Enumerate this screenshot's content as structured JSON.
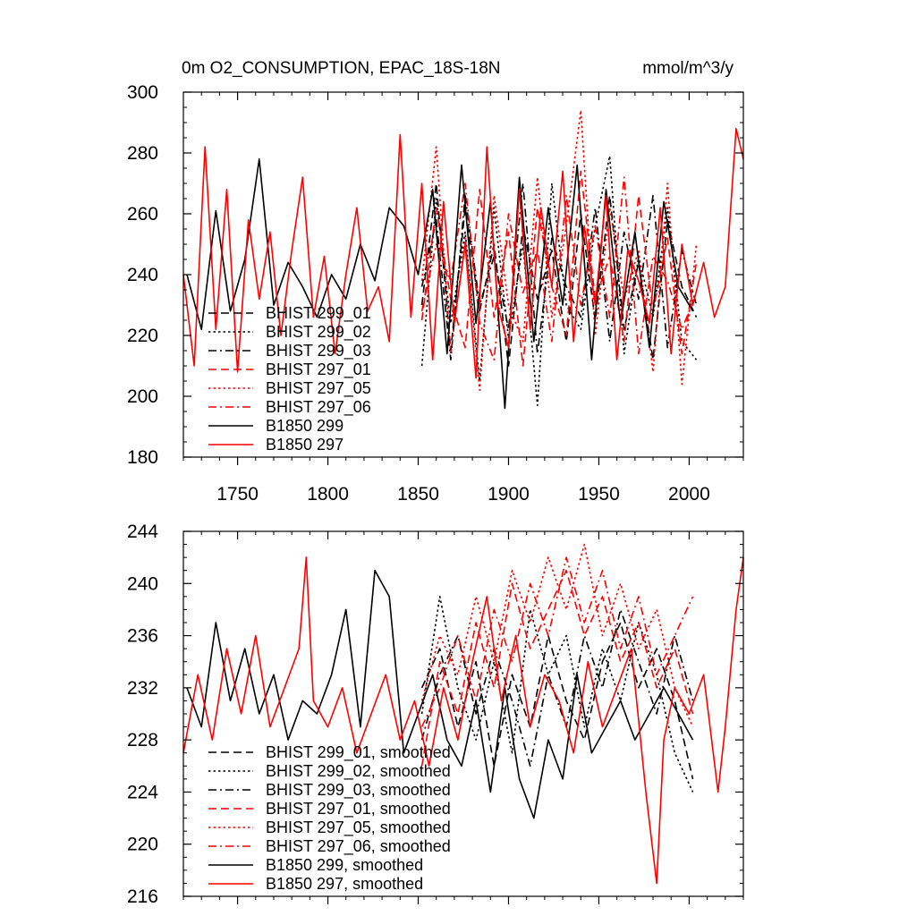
{
  "figure": {
    "title_left": "0m O2_CONSUMPTION, EPAC_18S-18N",
    "title_right": "mmol/m^3/y"
  },
  "colors": {
    "black": "#000000",
    "red": "#ff0000"
  },
  "chart_data": [
    {
      "type": "line",
      "name": "raw",
      "xlim": [
        1720,
        2030
      ],
      "ylim": [
        180,
        300
      ],
      "x_ticks": [
        1750,
        1800,
        1850,
        1900,
        1950,
        2000
      ],
      "x_tick_labels": [
        "1750",
        "1800",
        "1850",
        "1900",
        "1950",
        "2000"
      ],
      "y_ticks": [
        180,
        200,
        220,
        240,
        260,
        280,
        300
      ],
      "y_tick_labels": [
        "180",
        "200",
        "220",
        "240",
        "260",
        "280",
        "300"
      ],
      "legend": {
        "position": "bottom-left"
      },
      "series": [
        {
          "name": "BHIST 299_01",
          "color": "#000000",
          "dash": "dash",
          "x": [
            1852,
            1860,
            1868,
            1876,
            1884,
            1892,
            1900,
            1908,
            1916,
            1924,
            1932,
            1940,
            1948,
            1956,
            1964,
            1972,
            1980,
            1988,
            1996,
            2004
          ],
          "y": [
            230,
            270,
            215,
            262,
            228,
            250,
            210,
            256,
            232,
            248,
            218,
            260,
            225,
            266,
            222,
            244,
            212,
            258,
            236,
            226
          ]
        },
        {
          "name": "BHIST 299_02",
          "color": "#000000",
          "dash": "dot",
          "x": [
            1852,
            1860,
            1868,
            1876,
            1884,
            1892,
            1900,
            1908,
            1916,
            1924,
            1932,
            1940,
            1948,
            1956,
            1964,
            1972,
            1980,
            1988,
            1996,
            2004
          ],
          "y": [
            210,
            265,
            224,
            254,
            205,
            262,
            219,
            250,
            197,
            270,
            230,
            222,
            256,
            279,
            214,
            246,
            226,
            262,
            218,
            212
          ]
        },
        {
          "name": "BHIST 299_03",
          "color": "#000000",
          "dash": "dashdot",
          "x": [
            1852,
            1860,
            1868,
            1876,
            1884,
            1892,
            1900,
            1908,
            1916,
            1924,
            1932,
            1940,
            1948,
            1956,
            1964,
            1972,
            1980,
            1988,
            1996,
            2004
          ],
          "y": [
            236,
            258,
            212,
            266,
            230,
            246,
            222,
            270,
            214,
            252,
            236,
            226,
            262,
            218,
            254,
            232,
            266,
            216,
            248,
            230
          ]
        },
        {
          "name": "BHIST 297_01",
          "color": "#ff0000",
          "dash": "dash",
          "x": [
            1852,
            1860,
            1868,
            1876,
            1884,
            1892,
            1900,
            1908,
            1916,
            1924,
            1932,
            1940,
            1948,
            1956,
            1964,
            1972,
            1980,
            1988,
            1996,
            2004
          ],
          "y": [
            225,
            262,
            232,
            216,
            268,
            226,
            254,
            210,
            262,
            236,
            220,
            274,
            232,
            246,
            218,
            266,
            228,
            252,
            214,
            244
          ]
        },
        {
          "name": "BHIST 297_05",
          "color": "#ff0000",
          "dash": "dot",
          "x": [
            1852,
            1860,
            1868,
            1876,
            1884,
            1892,
            1900,
            1908,
            1916,
            1924,
            1932,
            1940,
            1948,
            1956,
            1964,
            1972,
            1980,
            1988,
            1996,
            2004
          ],
          "y": [
            238,
            282,
            214,
            252,
            202,
            266,
            230,
            218,
            272,
            226,
            256,
            294,
            220,
            262,
            232,
            248,
            208,
            270,
            204,
            250
          ]
        },
        {
          "name": "BHIST 297_06",
          "color": "#ff0000",
          "dash": "dashdot",
          "x": [
            1852,
            1860,
            1868,
            1876,
            1884,
            1892,
            1900,
            1908,
            1916,
            1924,
            1932,
            1940,
            1948,
            1956,
            1964,
            1972,
            1980,
            1988,
            1996,
            2004
          ],
          "y": [
            228,
            250,
            238,
            270,
            224,
            212,
            260,
            234,
            248,
            218,
            266,
            230,
            256,
            226,
            272,
            214,
            246,
            238,
            222,
            234
          ]
        },
        {
          "name": "B1850 299",
          "color": "#000000",
          "dash": "solid",
          "x": [
            1722,
            1730,
            1738,
            1746,
            1754,
            1762,
            1770,
            1778,
            1786,
            1794,
            1802,
            1810,
            1818,
            1826,
            1834,
            1842,
            1850,
            1858,
            1866,
            1874,
            1882,
            1890,
            1898,
            1906,
            1914,
            1922,
            1930,
            1938,
            1946,
            1954,
            1962,
            1970,
            1978,
            1986,
            1994,
            2002
          ],
          "y": [
            240,
            222,
            261,
            228,
            245,
            278,
            230,
            244,
            236,
            226,
            240,
            232,
            250,
            238,
            262,
            256,
            240,
            268,
            214,
            276,
            224,
            264,
            196,
            272,
            218,
            262,
            230,
            276,
            212,
            268,
            224,
            254,
            216,
            264,
            236,
            228
          ]
        },
        {
          "name": "B1850 297",
          "color": "#ff0000",
          "dash": "solid",
          "x": [
            1720,
            1726,
            1732,
            1738,
            1744,
            1750,
            1756,
            1762,
            1768,
            1774,
            1780,
            1786,
            1792,
            1798,
            1804,
            1810,
            1816,
            1822,
            1828,
            1834,
            1840,
            1846,
            1852,
            1858,
            1864,
            1870,
            1876,
            1882,
            1888,
            1894,
            1900,
            1906,
            1912,
            1918,
            1924,
            1930,
            1936,
            1942,
            1948,
            1954,
            1960,
            1966,
            1972,
            1978,
            1984,
            1990,
            1996,
            2002,
            2008,
            2014,
            2020,
            2026,
            2030
          ],
          "y": [
            240,
            210,
            282,
            222,
            268,
            208,
            258,
            232,
            254,
            220,
            248,
            272,
            226,
            246,
            214,
            240,
            262,
            228,
            236,
            218,
            286,
            226,
            270,
            212,
            264,
            224,
            250,
            206,
            282,
            230,
            216,
            268,
            222,
            262,
            236,
            274,
            218,
            256,
            230,
            266,
            212,
            248,
            238,
            224,
            262,
            214,
            250,
            230,
            244,
            226,
            236,
            288,
            278
          ]
        }
      ]
    },
    {
      "type": "line",
      "name": "smoothed",
      "xlim": [
        1720,
        2030
      ],
      "ylim": [
        216,
        244
      ],
      "x_ticks": [
        1750,
        1800,
        1850,
        1900,
        1950,
        2000
      ],
      "x_tick_labels": [],
      "y_ticks": [
        216,
        220,
        224,
        228,
        232,
        236,
        240,
        244
      ],
      "y_tick_labels": [
        "216",
        "220",
        "224",
        "228",
        "232",
        "236",
        "240",
        "244"
      ],
      "legend": {
        "position": "bottom-left"
      },
      "series": [
        {
          "name": "BHIST 299_01, smoothed",
          "color": "#000000",
          "dash": "dash",
          "x": [
            1852,
            1862,
            1872,
            1882,
            1892,
            1902,
            1912,
            1922,
            1932,
            1942,
            1952,
            1962,
            1972,
            1982,
            1992,
            2002
          ],
          "y": [
            232,
            235,
            229,
            234,
            226,
            233,
            229,
            236,
            231,
            228,
            234,
            237,
            232,
            235,
            231,
            225
          ]
        },
        {
          "name": "BHIST 299_02, smoothed",
          "color": "#000000",
          "dash": "dot",
          "x": [
            1852,
            1862,
            1872,
            1882,
            1892,
            1902,
            1912,
            1922,
            1932,
            1942,
            1952,
            1962,
            1972,
            1982,
            1992,
            2002
          ],
          "y": [
            230,
            239,
            232,
            228,
            234,
            227,
            238,
            233,
            236,
            229,
            235,
            231,
            237,
            233,
            227,
            224
          ]
        },
        {
          "name": "BHIST 299_03, smoothed",
          "color": "#000000",
          "dash": "dashdot",
          "x": [
            1852,
            1862,
            1872,
            1882,
            1892,
            1902,
            1912,
            1922,
            1932,
            1942,
            1952,
            1962,
            1972,
            1982,
            1992,
            2002
          ],
          "y": [
            228,
            233,
            236,
            230,
            235,
            231,
            226,
            233,
            229,
            236,
            232,
            238,
            234,
            230,
            236,
            231
          ]
        },
        {
          "name": "BHIST 297_01, smoothed",
          "color": "#ff0000",
          "dash": "dash",
          "x": [
            1852,
            1862,
            1872,
            1882,
            1892,
            1902,
            1912,
            1922,
            1932,
            1942,
            1952,
            1962,
            1972,
            1982,
            1992,
            2002
          ],
          "y": [
            226,
            234,
            230,
            237,
            232,
            240,
            235,
            238,
            241,
            236,
            239,
            234,
            237,
            232,
            235,
            230
          ]
        },
        {
          "name": "BHIST 297_05, smoothed",
          "color": "#ff0000",
          "dash": "dot",
          "x": [
            1852,
            1862,
            1872,
            1882,
            1892,
            1902,
            1912,
            1922,
            1932,
            1942,
            1952,
            1962,
            1972,
            1982,
            1992,
            2002
          ],
          "y": [
            231,
            236,
            233,
            239,
            234,
            241,
            237,
            242,
            238,
            243,
            236,
            240,
            235,
            238,
            232,
            229
          ]
        },
        {
          "name": "BHIST 297_06, smoothed",
          "color": "#ff0000",
          "dash": "dashdot",
          "x": [
            1852,
            1862,
            1872,
            1882,
            1892,
            1902,
            1912,
            1922,
            1932,
            1942,
            1952,
            1962,
            1972,
            1982,
            1992,
            2002
          ],
          "y": [
            229,
            232,
            236,
            231,
            238,
            234,
            240,
            236,
            242,
            237,
            241,
            235,
            239,
            233,
            236,
            239
          ]
        },
        {
          "name": "B1850 299, smoothed",
          "color": "#000000",
          "dash": "solid",
          "x": [
            1722,
            1730,
            1738,
            1746,
            1754,
            1762,
            1770,
            1778,
            1786,
            1794,
            1802,
            1810,
            1818,
            1826,
            1834,
            1842,
            1850,
            1858,
            1866,
            1874,
            1882,
            1890,
            1898,
            1906,
            1914,
            1922,
            1930,
            1938,
            1946,
            1954,
            1962,
            1970,
            1978,
            1986,
            1994,
            2002
          ],
          "y": [
            232,
            229,
            237,
            231,
            235,
            230,
            233,
            228,
            231,
            230,
            233,
            238,
            229,
            241,
            239,
            227,
            230,
            233,
            228,
            226,
            231,
            224,
            232,
            225,
            222,
            228,
            225,
            233,
            227,
            229,
            231,
            228,
            230,
            232,
            230,
            228
          ]
        },
        {
          "name": "B1850 297, smoothed",
          "color": "#ff0000",
          "dash": "solid",
          "x": [
            1720,
            1728,
            1736,
            1744,
            1752,
            1760,
            1768,
            1776,
            1784,
            1788,
            1792,
            1800,
            1808,
            1816,
            1824,
            1832,
            1840,
            1848,
            1856,
            1864,
            1872,
            1880,
            1888,
            1896,
            1904,
            1912,
            1920,
            1928,
            1936,
            1944,
            1952,
            1960,
            1968,
            1976,
            1982,
            1986,
            1992,
            2000,
            2008,
            2016,
            2020,
            2026,
            2030
          ],
          "y": [
            227,
            233,
            228,
            235,
            230,
            236,
            229,
            232,
            235,
            242,
            231,
            229,
            232,
            227,
            230,
            233,
            228,
            231,
            226,
            232,
            228,
            234,
            239,
            231,
            236,
            229,
            233,
            231,
            227,
            234,
            229,
            232,
            235,
            224,
            217,
            228,
            232,
            230,
            233,
            224,
            229,
            238,
            242
          ]
        }
      ]
    }
  ]
}
